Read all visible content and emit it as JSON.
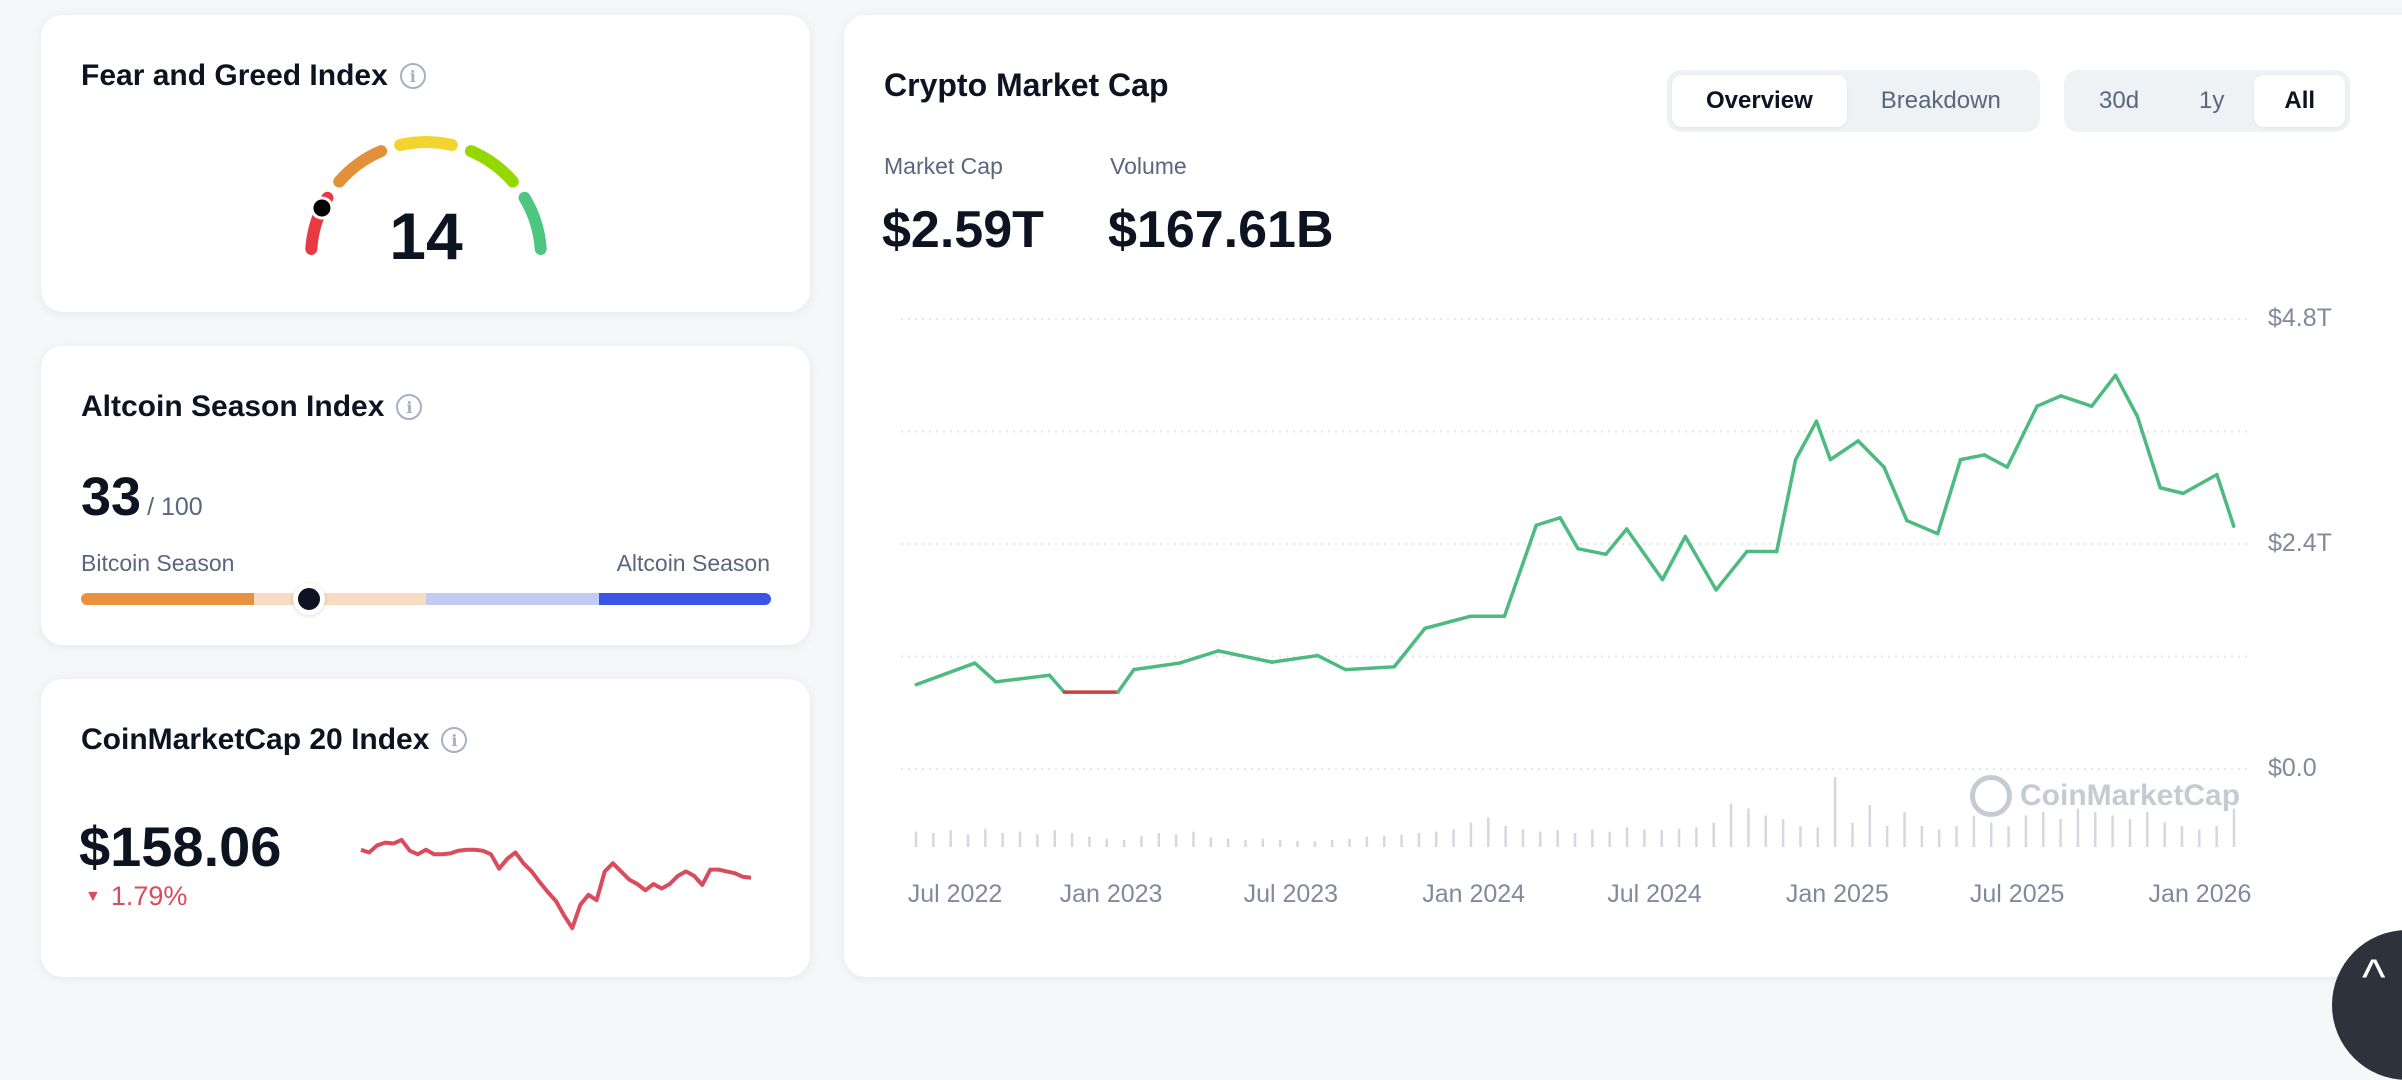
{
  "fear_greed": {
    "title": "Fear and Greed Index",
    "value": "14",
    "level": 14,
    "segment_colors": [
      "#ea3943",
      "#e2913a",
      "#f3d42f",
      "#93d900",
      "#4dc682"
    ]
  },
  "altcoin_season": {
    "title": "Altcoin Season Index",
    "value": "33",
    "max": "/ 100",
    "level": 33,
    "left_label": "Bitcoin Season",
    "right_label": "Altcoin Season",
    "segment_colors": [
      "#e8913f",
      "#f6dcc0",
      "#c3cbf5",
      "#3b55e6"
    ]
  },
  "cmc20": {
    "title": "CoinMarketCap 20 Index",
    "value": "$158.06",
    "change": "1.79%",
    "change_direction": "down",
    "color": "#d94c5c",
    "sparkline": [
      88,
      85,
      93,
      96,
      95,
      99,
      87,
      83,
      88,
      83,
      83,
      84,
      87,
      88,
      88,
      87,
      83,
      67,
      78,
      85,
      73,
      64,
      52,
      41,
      31,
      15,
      1,
      27,
      38,
      32,
      64,
      73,
      64,
      55,
      50,
      43,
      50,
      45,
      50,
      59,
      64,
      59,
      49,
      66,
      66,
      64,
      62,
      58,
      57
    ]
  },
  "market_cap": {
    "title": "Crypto Market Cap",
    "view_tabs": [
      {
        "label": "Overview",
        "active": true
      },
      {
        "label": "Breakdown",
        "active": false
      }
    ],
    "range_tabs": [
      {
        "label": "30d",
        "active": false
      },
      {
        "label": "1y",
        "active": false
      },
      {
        "label": "All",
        "active": true
      }
    ],
    "stats": {
      "market_cap_label": "Market Cap",
      "market_cap_value": "$2.59T",
      "volume_label": "Volume",
      "volume_value": "$167.61B"
    },
    "watermark": "CoinMarketCap",
    "up_color": "#4dbb7f",
    "down_color": "#c9413f"
  },
  "chart_data": {
    "type": "line",
    "title": "",
    "xlabel": "",
    "ylabel": "",
    "ylim": [
      0,
      4.8
    ],
    "y_unit": "T USD",
    "y_ticks": [
      {
        "value": 0,
        "label": "$0.0"
      },
      {
        "value": 2.4,
        "label": "$2.4T"
      },
      {
        "value": 4.8,
        "label": "$4.8T"
      }
    ],
    "y_grid_step": 1.2,
    "x_ticks": [
      {
        "date": "2022-07-01",
        "label": "Jul 2022"
      },
      {
        "date": "2023-01-01",
        "label": "Jan 2023"
      },
      {
        "date": "2023-07-01",
        "label": "Jul 2023"
      },
      {
        "date": "2024-01-01",
        "label": "Jan 2024"
      },
      {
        "date": "2024-07-01",
        "label": "Jul 2024"
      },
      {
        "date": "2025-01-01",
        "label": "Jan 2025"
      },
      {
        "date": "2025-07-01",
        "label": "Jul 2025"
      },
      {
        "date": "2026-01-01",
        "label": "Jan 2026"
      }
    ],
    "grid": true,
    "series": [
      {
        "x": [
          "2022-06-19",
          "2022-08-17",
          "2022-09-07",
          "2022-10-31",
          "2022-11-15",
          "2023-01-08",
          "2023-01-24",
          "2023-03-11",
          "2023-04-19",
          "2023-06-12",
          "2023-07-28",
          "2023-08-25",
          "2023-10-13",
          "2023-11-13",
          "2023-12-29",
          "2024-02-01",
          "2024-03-04",
          "2024-03-28",
          "2024-04-15",
          "2024-05-13",
          "2024-06-03",
          "2024-07-09",
          "2024-08-01",
          "2024-09-01",
          "2024-10-02",
          "2024-11-01",
          "2024-11-20",
          "2024-12-11",
          "2024-12-25",
          "2025-01-22",
          "2025-02-17",
          "2025-03-12",
          "2025-04-12",
          "2025-05-05",
          "2025-05-29",
          "2025-06-21",
          "2025-07-21",
          "2025-08-14",
          "2025-09-14",
          "2025-10-08",
          "2025-10-30",
          "2025-11-22",
          "2025-12-15",
          "2026-01-18",
          "2026-02-04"
        ],
        "y": [
          0.9,
          1.13,
          0.93,
          1.0,
          0.82,
          0.82,
          1.06,
          1.13,
          1.26,
          1.14,
          1.21,
          1.06,
          1.09,
          1.5,
          1.63,
          1.63,
          2.6,
          2.68,
          2.35,
          2.29,
          2.56,
          2.02,
          2.48,
          1.91,
          2.32,
          2.32,
          3.3,
          3.71,
          3.3,
          3.5,
          3.22,
          2.65,
          2.51,
          3.3,
          3.35,
          3.22,
          3.87,
          3.98,
          3.87,
          4.2,
          3.76,
          3.0,
          2.94,
          3.14,
          2.59
        ]
      }
    ],
    "volume_relative": [
      0.22,
      0.2,
      0.24,
      0.18,
      0.26,
      0.2,
      0.22,
      0.18,
      0.24,
      0.2,
      0.15,
      0.12,
      0.1,
      0.16,
      0.2,
      0.18,
      0.22,
      0.14,
      0.12,
      0.1,
      0.12,
      0.1,
      0.09,
      0.08,
      0.1,
      0.12,
      0.15,
      0.16,
      0.18,
      0.2,
      0.22,
      0.25,
      0.35,
      0.42,
      0.3,
      0.25,
      0.22,
      0.24,
      0.2,
      0.25,
      0.22,
      0.28,
      0.25,
      0.24,
      0.26,
      0.28,
      0.35,
      0.62,
      0.55,
      0.45,
      0.4,
      0.3,
      0.28,
      1.0,
      0.35,
      0.6,
      0.3,
      0.5,
      0.3,
      0.25,
      0.3,
      0.45,
      0.35,
      0.3,
      0.45,
      0.5,
      0.4,
      0.55,
      0.5,
      0.45,
      0.4,
      0.5,
      0.35,
      0.3,
      0.25,
      0.3,
      0.55
    ]
  }
}
